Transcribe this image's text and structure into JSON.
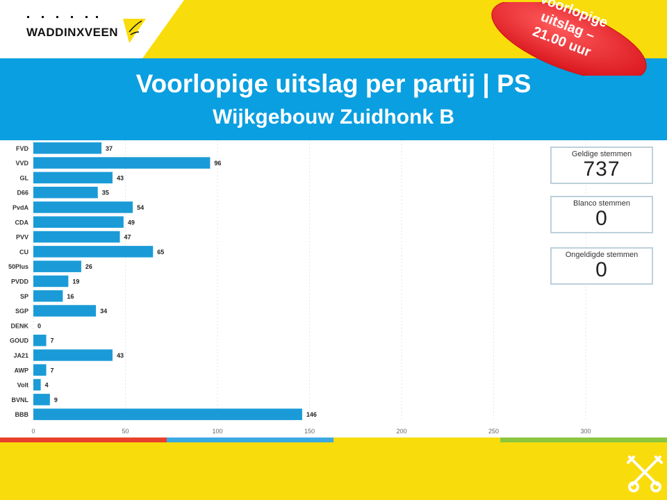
{
  "brand": {
    "name": "WADDINXVEEN"
  },
  "stamp": {
    "line1": "Voorlopige",
    "line2": "uitslag –",
    "line3": "21.00 uur"
  },
  "header": {
    "title": "Voorlopige uitslag per partij | PS",
    "subtitle": "Wijkgebouw Zuidhonk B"
  },
  "stats": [
    {
      "label": "Geldige stemmen",
      "value": "737"
    },
    {
      "label": "Blanco stemmen",
      "value": "0"
    },
    {
      "label": "Ongeldigde stemmen",
      "value": "0"
    }
  ],
  "colors": {
    "bar": "#1a9bd7",
    "band": "#0a9fe0",
    "yellow": "#f9dc0c",
    "stamp": "#e8232a"
  },
  "chart_data": {
    "type": "bar",
    "orientation": "horizontal",
    "categories": [
      "FVD",
      "VVD",
      "GL",
      "D66",
      "PvdA",
      "CDA",
      "PVV",
      "CU",
      "50Plus",
      "PVDD",
      "SP",
      "SGP",
      "DENK",
      "GOUD",
      "JA21",
      "AWP",
      "Volt",
      "BVNL",
      "BBB"
    ],
    "values": [
      37,
      96,
      43,
      35,
      54,
      49,
      47,
      65,
      26,
      19,
      16,
      34,
      0,
      7,
      43,
      7,
      4,
      9,
      146
    ],
    "xlim": [
      0,
      300
    ],
    "xticks": [
      0,
      50,
      100,
      150,
      200,
      250,
      300
    ],
    "grid": true
  }
}
